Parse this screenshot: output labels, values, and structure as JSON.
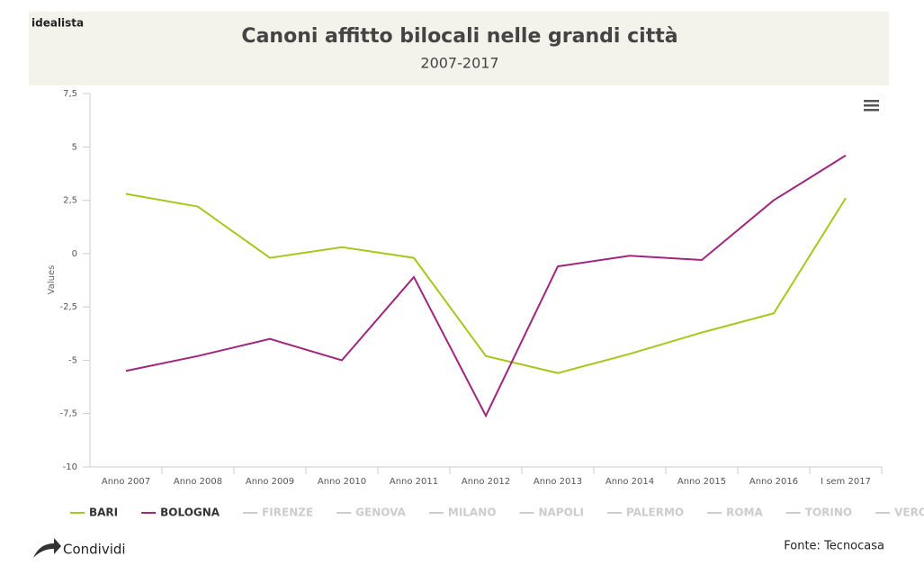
{
  "brand": "idealista",
  "share": "Condividi",
  "source": "Fonte: Tecnocasa",
  "chart_data": {
    "type": "line",
    "title": "Canoni affitto bilocali nelle grandi città",
    "subtitle": "2007-2017",
    "y_label": "Values",
    "categories": [
      "Anno 2007",
      "Anno 2008",
      "Anno 2009",
      "Anno 2010",
      "Anno 2011",
      "Anno 2012",
      "Anno 2013",
      "Anno 2014",
      "Anno 2015",
      "Anno 2016",
      "I sem 2017"
    ],
    "series": [
      {
        "name": "BARI",
        "color": "#a5c81d",
        "values": [
          2.8,
          2.2,
          -0.2,
          0.3,
          -0.2,
          -4.8,
          -5.6,
          -4.7,
          -3.7,
          -2.8,
          2.6
        ]
      },
      {
        "name": "BOLOGNA",
        "color": "#a0267e",
        "values": [
          -5.5,
          -4.8,
          -4.0,
          -5.0,
          -1.1,
          -7.6,
          -0.6,
          -0.1,
          -0.3,
          2.5,
          4.6
        ]
      }
    ],
    "hidden_series": [
      "FIRENZE",
      "GENOVA",
      "MILANO",
      "NAPOLI",
      "PALERMO",
      "ROMA",
      "TORINO",
      "VERONA"
    ],
    "ylim": [
      -10,
      7.5
    ],
    "yticks": [
      -10,
      {
        "value": -7.5,
        "label": "-7,5"
      },
      -5,
      {
        "value": -2.5,
        "label": "-2,5"
      },
      0,
      {
        "value": 2.5,
        "label": "2,5"
      },
      5,
      {
        "value": 7.5,
        "label": "7,5"
      }
    ],
    "grid": false,
    "legend": "bottom"
  }
}
